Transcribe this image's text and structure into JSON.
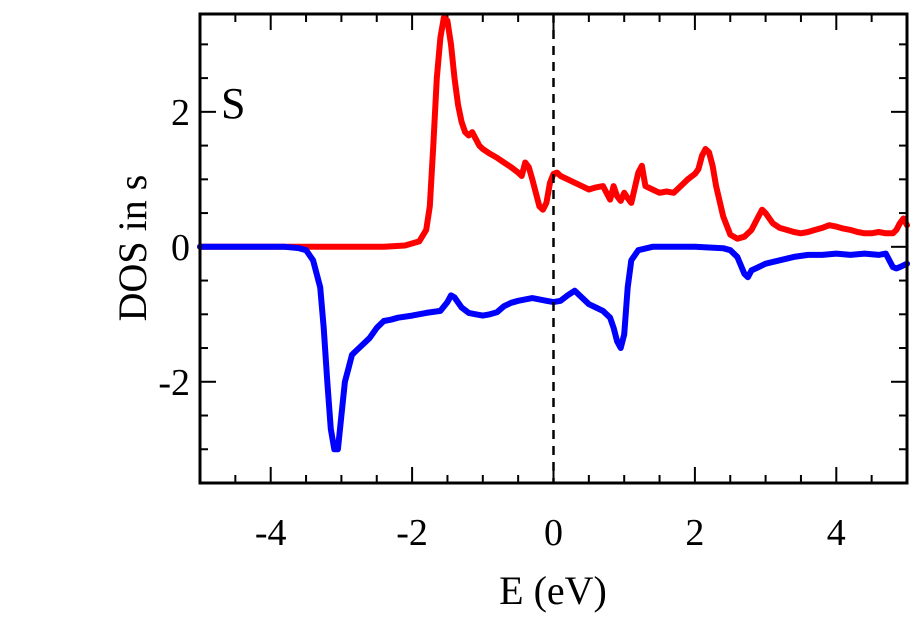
{
  "chart_data": {
    "type": "line",
    "title": "",
    "panel_label": "S",
    "xlabel": "E (eV)",
    "ylabel": "DOS in s",
    "xlim": [
      -5,
      5
    ],
    "ylim": [
      -3.5,
      3.45
    ],
    "xticks": [
      -4,
      -2,
      0,
      2,
      4
    ],
    "xtick_labels": [
      "-4",
      "-2",
      "0",
      "2",
      "4"
    ],
    "yticks": [
      -2,
      0,
      2
    ],
    "ytick_labels": [
      "-2",
      "0",
      "2"
    ],
    "grid": false,
    "fermi_level": 0,
    "series": [
      {
        "color": "#ff0000",
        "x": [
          -5.0,
          -3.7,
          -2.4,
          -2.1,
          -1.9,
          -1.8,
          -1.75,
          -1.7,
          -1.65,
          -1.6,
          -1.55,
          -1.5,
          -1.45,
          -1.4,
          -1.35,
          -1.3,
          -1.25,
          -1.2,
          -1.15,
          -1.1,
          -1.05,
          -1.0,
          -0.9,
          -0.8,
          -0.7,
          -0.6,
          -0.5,
          -0.45,
          -0.4,
          -0.35,
          -0.3,
          -0.25,
          -0.2,
          -0.15,
          -0.1,
          -0.05,
          0.0,
          0.05,
          0.1,
          0.2,
          0.3,
          0.4,
          0.5,
          0.6,
          0.7,
          0.8,
          0.85,
          0.9,
          0.95,
          1.0,
          1.05,
          1.1,
          1.2,
          1.25,
          1.3,
          1.4,
          1.5,
          1.6,
          1.7,
          1.8,
          1.9,
          2.0,
          2.05,
          2.1,
          2.15,
          2.2,
          2.25,
          2.3,
          2.4,
          2.5,
          2.6,
          2.7,
          2.8,
          2.9,
          2.95,
          3.0,
          3.1,
          3.2,
          3.3,
          3.4,
          3.5,
          3.6,
          3.7,
          3.8,
          3.9,
          4.0,
          4.1,
          4.2,
          4.3,
          4.4,
          4.5,
          4.6,
          4.7,
          4.8,
          4.85,
          4.9,
          4.95,
          5.0
        ],
        "y": [
          0.0,
          0.0,
          0.0,
          0.02,
          0.08,
          0.25,
          0.6,
          1.5,
          2.5,
          3.1,
          3.4,
          3.35,
          3.0,
          2.5,
          2.1,
          1.85,
          1.7,
          1.65,
          1.7,
          1.6,
          1.5,
          1.45,
          1.38,
          1.32,
          1.25,
          1.18,
          1.1,
          1.05,
          1.25,
          1.18,
          1.0,
          0.8,
          0.6,
          0.55,
          0.65,
          0.95,
          1.08,
          1.1,
          1.05,
          1.0,
          0.95,
          0.9,
          0.85,
          0.88,
          0.9,
          0.7,
          0.9,
          0.75,
          0.68,
          0.8,
          0.72,
          0.65,
          1.1,
          1.2,
          0.9,
          0.85,
          0.8,
          0.82,
          0.8,
          0.9,
          1.0,
          1.08,
          1.15,
          1.35,
          1.45,
          1.4,
          1.2,
          0.9,
          0.45,
          0.18,
          0.12,
          0.15,
          0.25,
          0.45,
          0.55,
          0.5,
          0.35,
          0.28,
          0.25,
          0.22,
          0.2,
          0.22,
          0.25,
          0.28,
          0.32,
          0.3,
          0.27,
          0.25,
          0.22,
          0.2,
          0.2,
          0.22,
          0.2,
          0.2,
          0.25,
          0.35,
          0.42,
          0.32
        ]
      },
      {
        "color": "#0000ff",
        "x": [
          -5.0,
          -3.8,
          -3.6,
          -3.5,
          -3.4,
          -3.3,
          -3.25,
          -3.2,
          -3.15,
          -3.1,
          -3.05,
          -3.0,
          -2.95,
          -2.9,
          -2.85,
          -2.8,
          -2.75,
          -2.7,
          -2.6,
          -2.5,
          -2.4,
          -2.3,
          -2.2,
          -2.0,
          -1.8,
          -1.6,
          -1.5,
          -1.45,
          -1.4,
          -1.3,
          -1.2,
          -1.1,
          -1.0,
          -0.9,
          -0.8,
          -0.7,
          -0.6,
          -0.5,
          -0.4,
          -0.3,
          -0.2,
          -0.1,
          0.0,
          0.1,
          0.2,
          0.3,
          0.4,
          0.5,
          0.6,
          0.7,
          0.8,
          0.85,
          0.9,
          0.95,
          1.0,
          1.05,
          1.1,
          1.2,
          1.4,
          1.6,
          2.0,
          2.4,
          2.5,
          2.6,
          2.7,
          2.75,
          2.8,
          2.9,
          3.0,
          3.2,
          3.4,
          3.6,
          3.8,
          4.0,
          4.2,
          4.4,
          4.6,
          4.7,
          4.8,
          4.85,
          4.9,
          5.0
        ],
        "y": [
          0.0,
          0.0,
          -0.02,
          -0.05,
          -0.2,
          -0.6,
          -1.2,
          -2.0,
          -2.7,
          -3.0,
          -3.0,
          -2.5,
          -2.0,
          -1.8,
          -1.6,
          -1.55,
          -1.5,
          -1.45,
          -1.35,
          -1.2,
          -1.1,
          -1.08,
          -1.05,
          -1.02,
          -0.98,
          -0.95,
          -0.82,
          -0.72,
          -0.75,
          -0.9,
          -0.98,
          -1.0,
          -1.02,
          -1.0,
          -0.97,
          -0.88,
          -0.83,
          -0.8,
          -0.78,
          -0.76,
          -0.78,
          -0.8,
          -0.82,
          -0.8,
          -0.72,
          -0.65,
          -0.75,
          -0.85,
          -0.9,
          -0.95,
          -1.05,
          -1.2,
          -1.4,
          -1.5,
          -1.3,
          -0.6,
          -0.2,
          -0.05,
          0.0,
          0.0,
          0.0,
          -0.02,
          -0.05,
          -0.15,
          -0.4,
          -0.45,
          -0.35,
          -0.3,
          -0.25,
          -0.2,
          -0.15,
          -0.12,
          -0.12,
          -0.1,
          -0.12,
          -0.1,
          -0.12,
          -0.1,
          -0.3,
          -0.32,
          -0.3,
          -0.25
        ]
      }
    ]
  }
}
